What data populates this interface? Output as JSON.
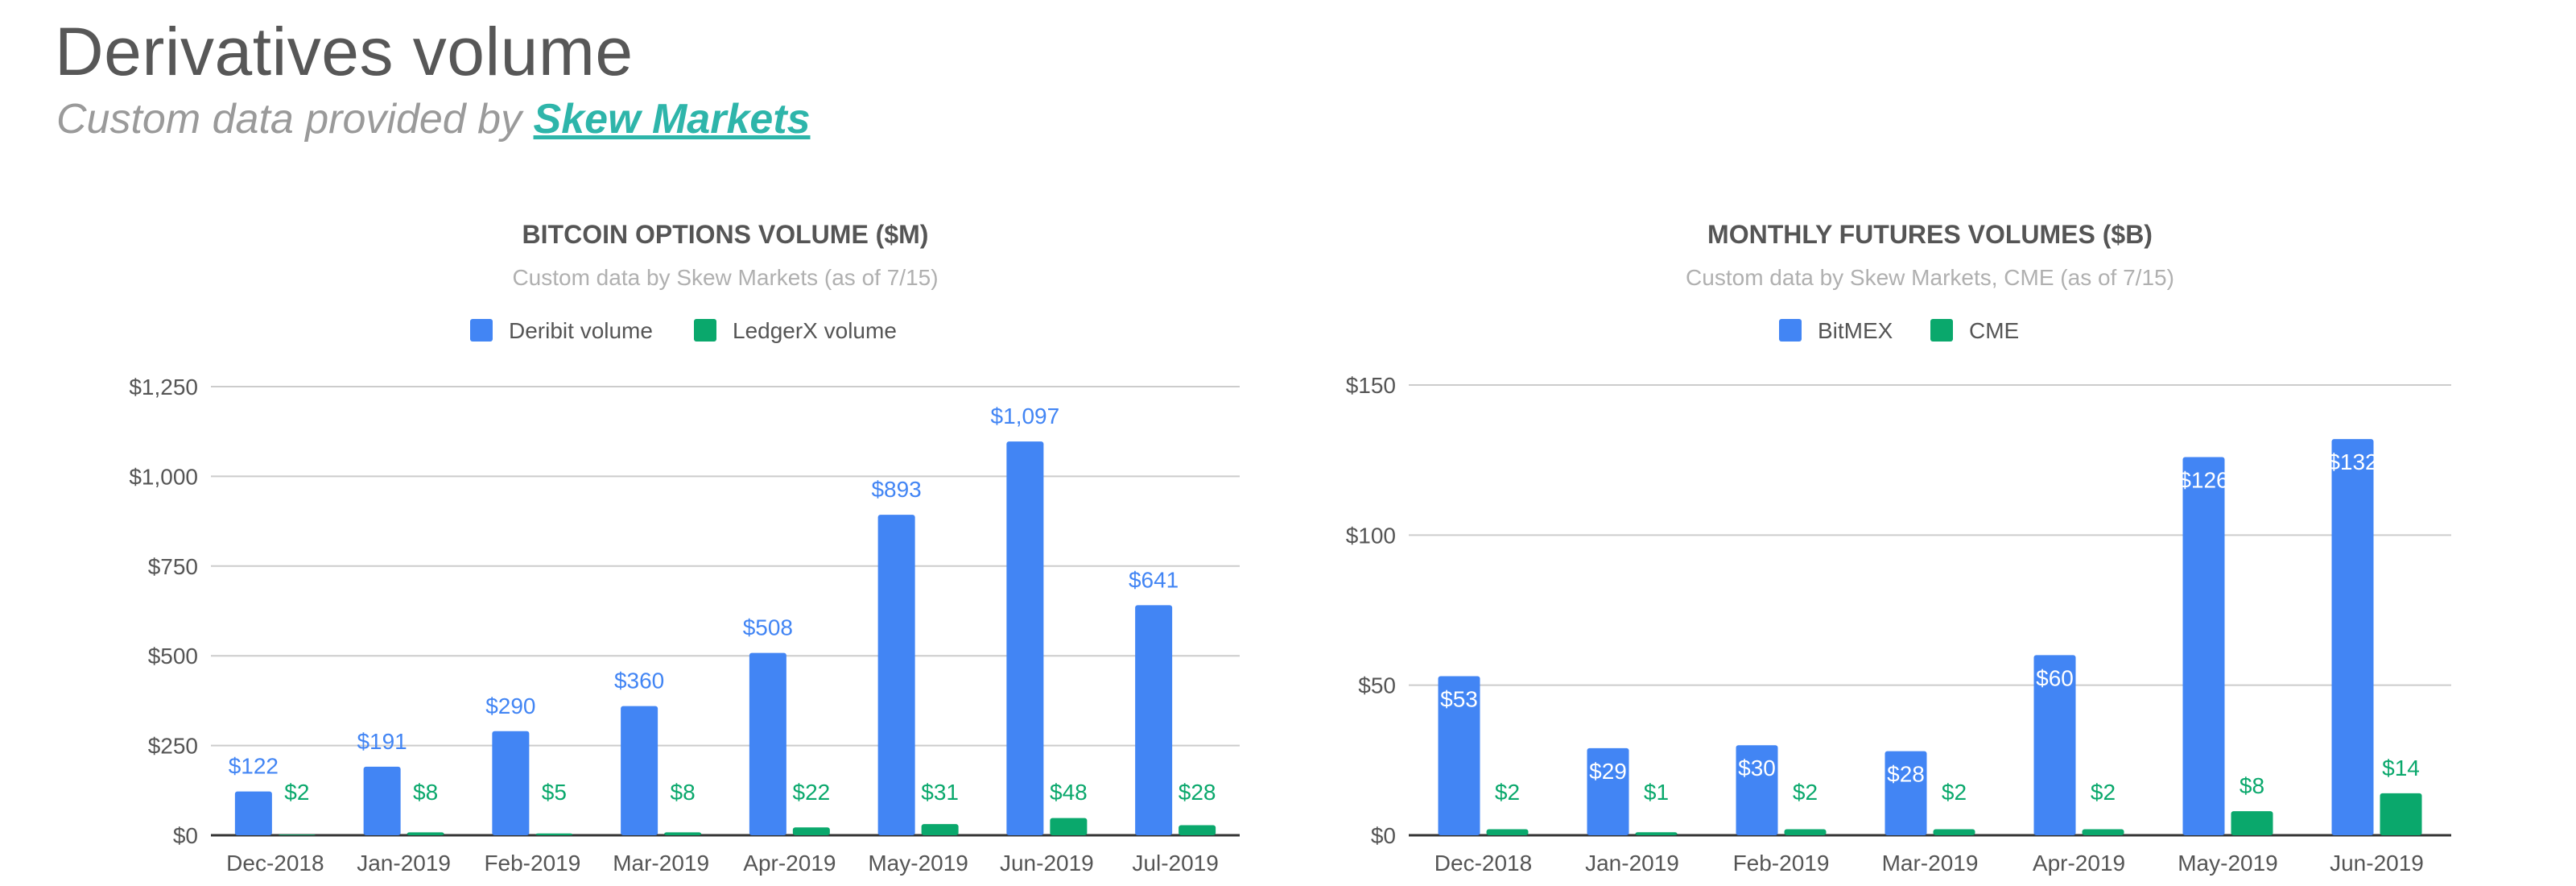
{
  "header": {
    "title": "Derivatives volume",
    "subtitle_prefix": "Custom data provided by",
    "sponsor_link": "Skew Markets"
  },
  "colors": {
    "blue": "#4285f4",
    "green": "#0aa86c",
    "axis_text": "#555555",
    "title_text": "#555555",
    "subtitle_text": "#b0b0b0",
    "grid": "#cccccc"
  },
  "chart_data": [
    {
      "type": "bar",
      "title": "BITCOIN OPTIONS VOLUME ($M)",
      "subtitle": "Custom data by Skew Markets (as of 7/15)",
      "categories": [
        "Dec-2018",
        "Jan-2019",
        "Feb-2019",
        "Mar-2019",
        "Apr-2019",
        "May-2019",
        "Jun-2019",
        "Jul-2019"
      ],
      "series": [
        {
          "name": "Deribit volume",
          "color": "#4285f4",
          "values": [
            122,
            191,
            290,
            360,
            508,
            893,
            1097,
            641
          ],
          "labels": [
            "$122",
            "$191",
            "$290",
            "$360",
            "$508",
            "$893",
            "$1,097",
            "$641"
          ]
        },
        {
          "name": "LedgerX volume",
          "color": "#0aa86c",
          "values": [
            2,
            8,
            5,
            8,
            22,
            31,
            48,
            28
          ],
          "labels": [
            "$2",
            "$8",
            "$5",
            "$8",
            "$22",
            "$31",
            "$48",
            "$28"
          ]
        }
      ],
      "ylim": [
        0,
        1250
      ],
      "yticks": [
        0,
        250,
        500,
        750,
        1000,
        1250
      ],
      "ytick_labels": [
        "$0",
        "$250",
        "$500",
        "$750",
        "$1,000",
        "$1,250"
      ],
      "grid": true,
      "legend": "top"
    },
    {
      "type": "bar",
      "title": "MONTHLY FUTURES VOLUMES ($B)",
      "subtitle": "Custom data by Skew Markets, CME (as of 7/15)",
      "categories": [
        "Dec-2018",
        "Jan-2019",
        "Feb-2019",
        "Mar-2019",
        "Apr-2019",
        "May-2019",
        "Jun-2019"
      ],
      "series": [
        {
          "name": "BitMEX",
          "color": "#4285f4",
          "values": [
            53,
            29,
            30,
            28,
            60,
            126,
            132
          ],
          "labels": [
            "$53",
            "$29",
            "$30",
            "$28",
            "$60",
            "$126",
            "$132"
          ]
        },
        {
          "name": "CME",
          "color": "#0aa86c",
          "values": [
            2,
            1,
            2,
            2,
            2,
            8,
            14
          ],
          "labels": [
            "$2",
            "$1",
            "$2",
            "$2",
            "$2",
            "$8",
            "$14"
          ]
        }
      ],
      "ylim": [
        0,
        150
      ],
      "yticks": [
        0,
        50,
        100,
        150
      ],
      "ytick_labels": [
        "$0",
        "$50",
        "$100",
        "$150"
      ],
      "grid": true,
      "legend": "top"
    }
  ]
}
